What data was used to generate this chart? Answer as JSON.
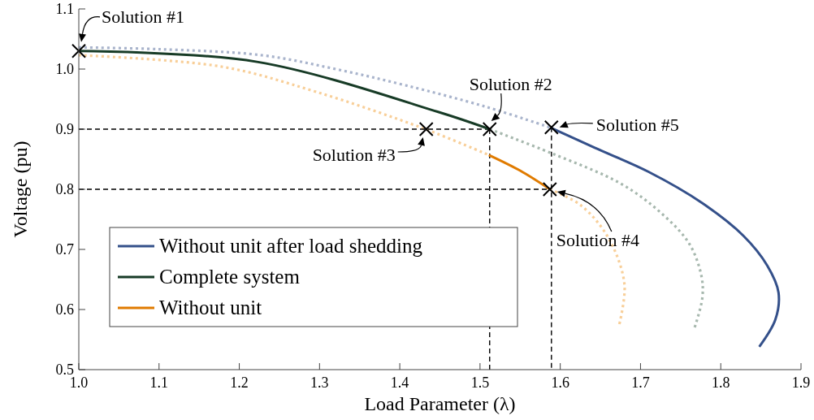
{
  "chart_data": {
    "type": "line",
    "xlabel": "Load Parameter (λ)",
    "ylabel": "Voltage (pu)",
    "xlim": [
      1.0,
      1.9
    ],
    "xticks": [
      {
        "value": 1.0,
        "label": "1.0"
      },
      1.1,
      1.2,
      1.3,
      1.4,
      1.5,
      1.6,
      1.7,
      1.8,
      1.9
    ],
    "ylim": [
      0.5,
      1.1
    ],
    "yticks": [
      0.5,
      0.6,
      0.7,
      0.8,
      0.9,
      {
        "value": 1.0,
        "label": "1.0"
      },
      1.1
    ],
    "grid": false,
    "legend": "left",
    "series": [
      {
        "color": "#a9b4cc",
        "line_style": "dotted",
        "x": [
          1.0,
          1.1,
          1.228,
          1.32,
          1.407,
          1.508,
          1.589
        ],
        "values": [
          1.036,
          1.033,
          1.023,
          1.0,
          0.973,
          0.937,
          0.902
        ]
      },
      {
        "color": "#a7b8ae",
        "line_style": "dotted",
        "x": [
          1.512,
          1.589,
          1.676,
          1.727,
          1.761,
          1.776,
          1.777,
          1.767
        ],
        "values": [
          0.9,
          0.86,
          0.809,
          0.759,
          0.709,
          0.655,
          0.619,
          0.568
        ]
      },
      {
        "color": "#f8cf99",
        "line_style": "dotted",
        "x": [
          1.0,
          1.178,
          1.296,
          1.43,
          1.511
        ],
        "values": [
          1.023,
          1.004,
          0.962,
          0.901,
          0.857
        ]
      },
      {
        "color": "#f8cf99",
        "line_style": "dotted",
        "x": [
          1.587,
          1.626,
          1.66,
          1.68,
          1.673
        ],
        "values": [
          0.8,
          0.773,
          0.719,
          0.642,
          0.572
        ]
      },
      {
        "color": "#000000",
        "line_style": "dashed",
        "x": [
          1.0,
          1.512
        ],
        "values": [
          0.9,
          0.9
        ]
      },
      {
        "color": "#000000",
        "line_style": "dashed",
        "x": [
          1.512,
          1.512
        ],
        "values": [
          0.9,
          0.5
        ]
      },
      {
        "color": "#000000",
        "line_style": "dashed",
        "x": [
          1.0,
          1.587
        ],
        "values": [
          0.8,
          0.8
        ]
      },
      {
        "color": "#000000",
        "line_style": "dashed",
        "x": [
          1.589,
          1.589
        ],
        "values": [
          0.903,
          0.5
        ]
      },
      {
        "name": "Without unit after load shedding",
        "color": "#34508a",
        "line_style": "solid",
        "x": [
          1.589,
          1.643,
          1.71,
          1.777,
          1.828,
          1.858,
          1.872,
          1.868,
          1.848
        ],
        "values": [
          0.902,
          0.869,
          0.829,
          0.777,
          0.723,
          0.673,
          0.628,
          0.583,
          0.538
        ]
      },
      {
        "name": "Complete system",
        "color": "#173b26",
        "line_style": "solid",
        "x": [
          1.0,
          1.222,
          1.447,
          1.512
        ],
        "values": [
          1.03,
          1.012,
          0.929,
          0.9
        ]
      },
      {
        "name": "Without unit",
        "color": "#e07b00",
        "line_style": "solid",
        "x": [
          1.511,
          1.55,
          1.587
        ],
        "values": [
          0.857,
          0.831,
          0.8
        ]
      },
      {
        "type": "scatter",
        "marker": "cross",
        "color": "#000000",
        "x": [
          1.0,
          1.512,
          1.433,
          1.587,
          1.589
        ],
        "values": [
          1.03,
          0.9,
          0.9,
          0.8,
          0.903
        ]
      }
    ],
    "annotations": [
      {
        "text": "Solution #1",
        "x": 1.0,
        "y": 1.03
      },
      {
        "text": "Solution #2",
        "x": 1.512,
        "y": 0.9
      },
      {
        "text": "Solution #3",
        "x": 1.433,
        "y": 0.9
      },
      {
        "text": "Solution #4",
        "x": 1.587,
        "y": 0.8
      },
      {
        "text": "Solution #5",
        "x": 1.589,
        "y": 0.903
      }
    ]
  }
}
